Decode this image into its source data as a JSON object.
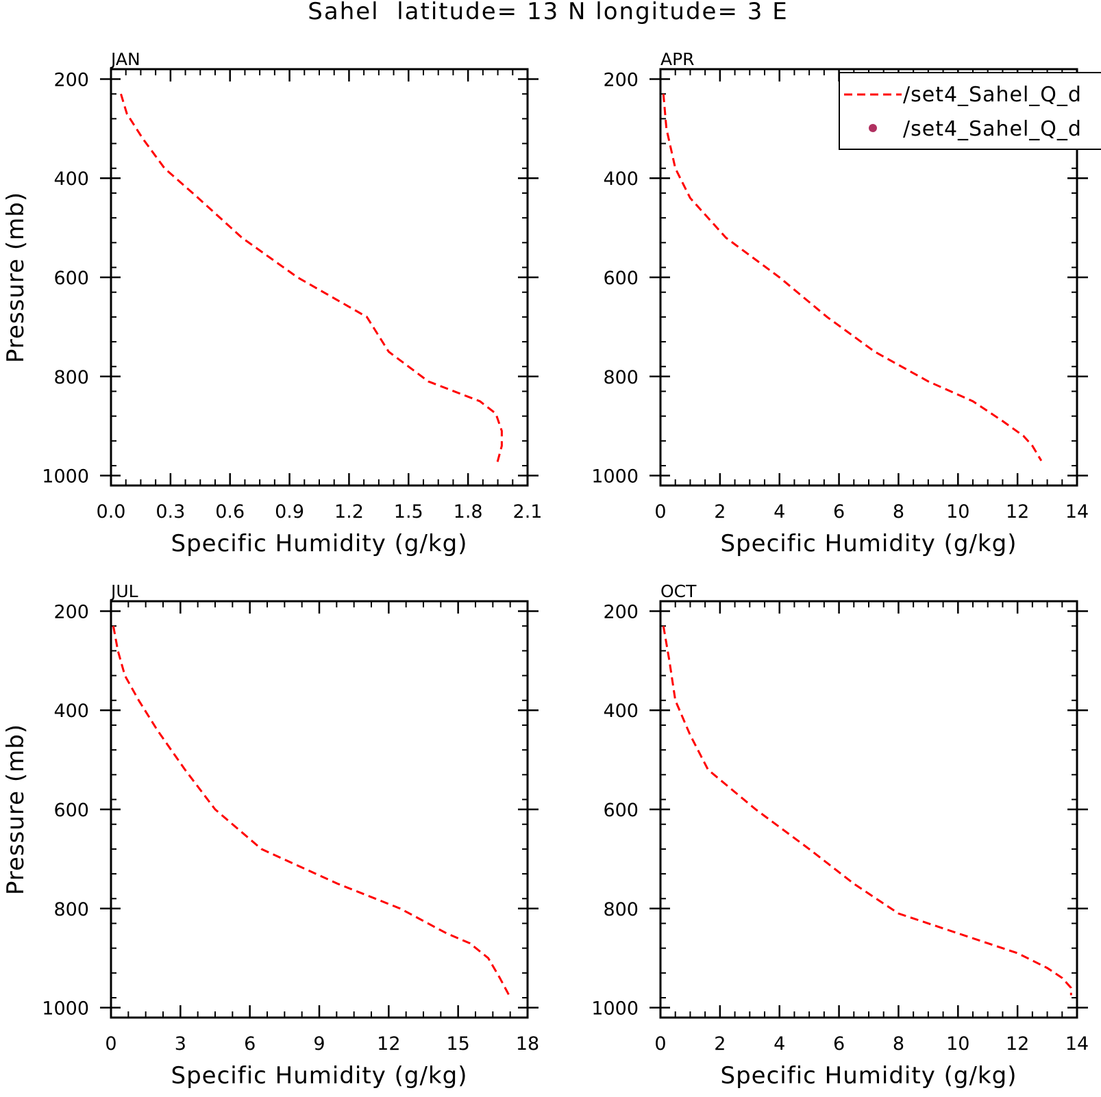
{
  "figure_title": "Sahel  latitude= 13 N longitude= 3 E",
  "legend": {
    "entries": [
      {
        "label": "/set4_Sahel_Q_d",
        "style": "dashed-line",
        "color": "#ff0000"
      },
      {
        "label": "/set4_Sahel_Q_d",
        "style": "dot-marker",
        "color": "#b03060"
      }
    ]
  },
  "chart_data": [
    {
      "type": "line",
      "panel_label": "JAN",
      "xlabel": "Specific Humidity (g/kg)",
      "ylabel": "Pressure (mb)",
      "xlim": [
        0.0,
        2.1
      ],
      "ylim": [
        1000,
        200
      ],
      "xticks": [
        "0.0",
        "0.3",
        "0.6",
        "0.9",
        "1.2",
        "1.5",
        "1.8",
        "2.1"
      ],
      "yticks": [
        "200",
        "400",
        "600",
        "800",
        "1000"
      ],
      "y_inverted": true,
      "series": [
        {
          "color": "#ff0000",
          "dash": "dashed",
          "x": [
            0.05,
            0.08,
            0.16,
            0.27,
            0.44,
            0.66,
            0.94,
            1.29,
            1.4,
            1.6,
            1.86,
            1.94,
            1.97,
            1.97,
            1.95,
            1.94
          ],
          "y": [
            230,
            270,
            320,
            380,
            440,
            520,
            600,
            680,
            750,
            810,
            850,
            875,
            910,
            940,
            970,
            980
          ]
        }
      ]
    },
    {
      "type": "line",
      "panel_label": "APR",
      "xlabel": "Specific Humidity (g/kg)",
      "ylabel": "",
      "xlim": [
        0,
        14
      ],
      "ylim": [
        1000,
        200
      ],
      "xticks": [
        "0",
        "2",
        "4",
        "6",
        "8",
        "10",
        "12",
        "14"
      ],
      "yticks": [
        "200",
        "400",
        "600",
        "800",
        "1000"
      ],
      "y_inverted": true,
      "series": [
        {
          "color": "#ff0000",
          "dash": "dashed",
          "x": [
            0.1,
            0.2,
            0.5,
            1.0,
            2.2,
            4.0,
            5.6,
            7.2,
            9.0,
            10.5,
            11.5,
            12.2,
            12.5,
            12.7,
            12.8
          ],
          "y": [
            230,
            300,
            380,
            440,
            520,
            600,
            680,
            750,
            810,
            850,
            890,
            920,
            940,
            960,
            970
          ]
        }
      ]
    },
    {
      "type": "line",
      "panel_label": "JUL",
      "xlabel": "Specific Humidity (g/kg)",
      "ylabel": "Pressure (mb)",
      "xlim": [
        0,
        18
      ],
      "ylim": [
        1000,
        200
      ],
      "xticks": [
        "0",
        "3",
        "6",
        "9",
        "12",
        "15",
        "18"
      ],
      "yticks": [
        "200",
        "400",
        "600",
        "800",
        "1000"
      ],
      "y_inverted": true,
      "series": [
        {
          "color": "#ff0000",
          "dash": "dashed",
          "x": [
            0.1,
            0.3,
            0.6,
            1.2,
            2.0,
            3.2,
            4.5,
            6.5,
            9.8,
            12.5,
            14.5,
            15.5,
            16.3,
            16.8,
            17.2
          ],
          "y": [
            230,
            280,
            330,
            380,
            440,
            520,
            600,
            680,
            750,
            800,
            850,
            870,
            900,
            940,
            975
          ]
        }
      ]
    },
    {
      "type": "line",
      "panel_label": "OCT",
      "xlabel": "Specific Humidity (g/kg)",
      "ylabel": "",
      "xlim": [
        0,
        14
      ],
      "ylim": [
        1000,
        200
      ],
      "xticks": [
        "0",
        "2",
        "4",
        "6",
        "8",
        "10",
        "12",
        "14"
      ],
      "yticks": [
        "200",
        "400",
        "600",
        "800",
        "1000"
      ],
      "y_inverted": true,
      "series": [
        {
          "color": "#ff0000",
          "dash": "dashed",
          "x": [
            0.1,
            0.3,
            0.5,
            1.0,
            1.6,
            3.2,
            5.0,
            6.5,
            8.0,
            10.0,
            12.0,
            13.0,
            13.5,
            13.8,
            13.8
          ],
          "y": [
            230,
            300,
            380,
            450,
            520,
            600,
            680,
            750,
            810,
            850,
            890,
            920,
            940,
            960,
            975
          ]
        }
      ]
    }
  ]
}
